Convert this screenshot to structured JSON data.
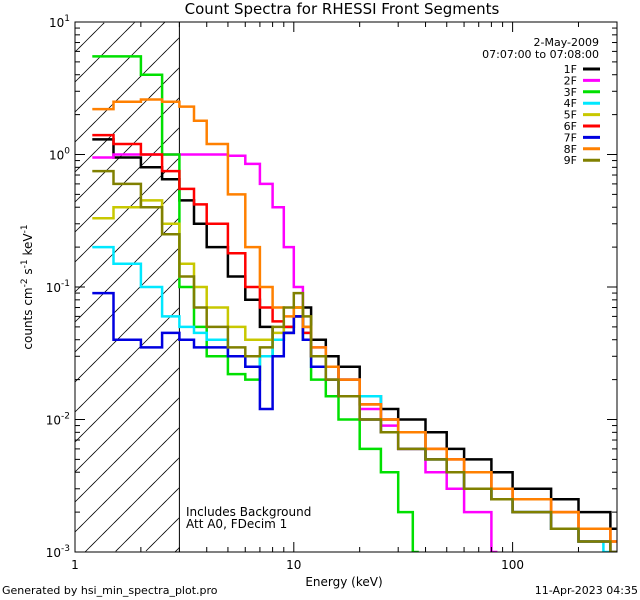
{
  "chart_data": {
    "type": "line",
    "title": "Count Spectra for RHESSI Front Segments",
    "xlabel": "Energy (keV)",
    "ylabel": "counts cm",
    "ylabel_exp1": "-2",
    "ylabel_mid": " s",
    "ylabel_exp2": "-1",
    "ylabel_end": " keV",
    "ylabel_exp3": "-1",
    "xscale": "log",
    "yscale": "log",
    "xlim": [
      1,
      300
    ],
    "ylim": [
      0.001,
      10
    ],
    "x_ticks": [
      {
        "value": 1,
        "label": "1"
      },
      {
        "value": 10,
        "label": "10"
      },
      {
        "value": 100,
        "label": "100"
      }
    ],
    "y_ticks": [
      {
        "value": 0.001,
        "base": "10",
        "exp": "-3"
      },
      {
        "value": 0.01,
        "base": "10",
        "exp": "-2"
      },
      {
        "value": 0.1,
        "base": "10",
        "exp": "-1"
      },
      {
        "value": 1,
        "base": "10",
        "exp": "0"
      },
      {
        "value": 10,
        "base": "10",
        "exp": "1"
      }
    ],
    "hatched_region": {
      "from": 1,
      "to": 3
    },
    "legend_position": "top-right",
    "date": "2-May-2009",
    "time_range": "07:07:00 to 07:08:00",
    "annotations": [
      "Includes Background",
      "Att A0, FDecim 1"
    ],
    "series": [
      {
        "name": "1F",
        "color": "#000000",
        "energies": [
          1.2,
          1.5,
          2.0,
          2.5,
          3.0,
          3.5,
          4.0,
          5.0,
          6.0,
          7.0,
          8.0,
          9.0,
          10.0,
          11.0,
          12.0,
          14.0,
          16.0,
          20.0,
          25.0,
          30.0,
          40.0,
          50.0,
          60.0,
          80.0,
          100.0,
          150.0,
          200.0,
          280.0
        ],
        "values": [
          1.3,
          0.95,
          0.8,
          0.65,
          0.45,
          0.3,
          0.2,
          0.12,
          0.08,
          0.05,
          0.04,
          0.045,
          0.06,
          0.07,
          0.04,
          0.03,
          0.025,
          0.015,
          0.012,
          0.01,
          0.008,
          0.006,
          0.005,
          0.004,
          0.003,
          0.0025,
          0.002,
          0.0015
        ]
      },
      {
        "name": "2F",
        "color": "#ff00ff",
        "energies": [
          1.2,
          1.5,
          2.0,
          2.5,
          3.0,
          3.5,
          4.0,
          5.0,
          6.0,
          7.0,
          8.0,
          9.0,
          10.0,
          11.0,
          12.0,
          14.0,
          16.0,
          20.0,
          25.0,
          30.0,
          40.0,
          50.0,
          60.0,
          80.0
        ],
        "values": [
          0.95,
          1.0,
          1.0,
          1.0,
          1.0,
          1.0,
          1.0,
          0.98,
          0.85,
          0.6,
          0.4,
          0.2,
          0.1,
          0.05,
          0.035,
          0.025,
          0.02,
          0.012,
          0.009,
          0.006,
          0.004,
          0.003,
          0.002,
          0.001
        ]
      },
      {
        "name": "3F",
        "color": "#00e000",
        "energies": [
          1.2,
          1.5,
          2.0,
          2.5,
          3.0,
          3.5,
          4.0,
          5.0,
          6.0,
          7.0,
          8.0,
          9.0,
          10.0,
          11.0,
          12.0,
          14.0,
          16.0,
          20.0,
          25.0,
          30.0,
          35.0
        ],
        "values": [
          5.5,
          5.5,
          4.0,
          1.0,
          0.1,
          0.05,
          0.03,
          0.022,
          0.02,
          0.03,
          0.04,
          0.05,
          0.07,
          0.04,
          0.02,
          0.015,
          0.01,
          0.006,
          0.004,
          0.002,
          0.001
        ]
      },
      {
        "name": "4F",
        "color": "#00e8ff",
        "energies": [
          1.2,
          1.5,
          2.0,
          2.5,
          3.0,
          3.5,
          4.0,
          5.0,
          6.0,
          7.0,
          8.0,
          9.0,
          10.0,
          11.0,
          12.0,
          14.0,
          16.0,
          20.0,
          25.0,
          30.0,
          40.0,
          50.0,
          60.0,
          80.0,
          100.0,
          150.0,
          200.0,
          260.0
        ],
        "values": [
          0.2,
          0.15,
          0.1,
          0.06,
          0.05,
          0.045,
          0.04,
          0.03,
          0.025,
          0.03,
          0.04,
          0.05,
          0.06,
          0.045,
          0.03,
          0.025,
          0.02,
          0.015,
          0.01,
          0.008,
          0.005,
          0.004,
          0.003,
          0.0025,
          0.002,
          0.0015,
          0.0012,
          0.001
        ]
      },
      {
        "name": "5F",
        "color": "#c8c800",
        "energies": [
          1.2,
          1.5,
          2.0,
          2.5,
          3.0,
          3.5,
          4.0,
          5.0,
          6.0,
          7.0,
          8.0,
          9.0,
          10.0,
          11.0,
          12.0,
          14.0,
          16.0,
          20.0,
          25.0,
          30.0,
          40.0,
          50.0,
          60.0,
          80.0,
          100.0,
          150.0,
          200.0,
          280.0
        ],
        "values": [
          0.33,
          0.4,
          0.45,
          0.3,
          0.15,
          0.1,
          0.07,
          0.05,
          0.04,
          0.04,
          0.045,
          0.05,
          0.07,
          0.05,
          0.03,
          0.02,
          0.015,
          0.01,
          0.008,
          0.006,
          0.005,
          0.004,
          0.003,
          0.0025,
          0.002,
          0.0015,
          0.0012,
          0.001
        ]
      },
      {
        "name": "6F",
        "color": "#ff0000",
        "energies": [
          1.2,
          1.5,
          2.0,
          2.5,
          3.0,
          3.5,
          4.0,
          5.0,
          6.0,
          7.0,
          8.0,
          9.0,
          10.0,
          11.0,
          12.0,
          14.0,
          16.0,
          20.0,
          25.0,
          30.0,
          40.0,
          50.0,
          60.0,
          80.0,
          100.0,
          150.0,
          200.0,
          280.0
        ],
        "values": [
          1.4,
          1.2,
          1.0,
          0.75,
          0.55,
          0.42,
          0.3,
          0.18,
          0.1,
          0.07,
          0.055,
          0.05,
          0.06,
          0.045,
          0.03,
          0.025,
          0.02,
          0.013,
          0.01,
          0.008,
          0.006,
          0.005,
          0.004,
          0.003,
          0.0025,
          0.002,
          0.0015,
          0.0012
        ]
      },
      {
        "name": "7F",
        "color": "#0000e0",
        "energies": [
          1.2,
          1.5,
          2.0,
          2.5,
          3.0,
          3.5,
          4.0,
          5.0,
          6.0,
          7.0,
          8.0,
          9.0,
          10.0,
          11.0,
          12.0,
          14.0,
          16.0,
          20.0,
          25.0,
          30.0,
          40.0,
          50.0,
          60.0,
          80.0,
          100.0,
          150.0,
          200.0,
          280.0
        ],
        "values": [
          0.09,
          0.04,
          0.035,
          0.045,
          0.04,
          0.035,
          0.035,
          0.03,
          0.025,
          0.012,
          0.03,
          0.045,
          0.06,
          0.04,
          0.025,
          0.02,
          0.015,
          0.01,
          0.008,
          0.006,
          0.005,
          0.004,
          0.003,
          0.0025,
          0.002,
          0.0015,
          0.0012,
          0.001
        ]
      },
      {
        "name": "8F",
        "color": "#ff8000",
        "energies": [
          1.2,
          1.5,
          2.0,
          2.5,
          3.0,
          3.5,
          4.0,
          5.0,
          6.0,
          7.0,
          8.0,
          9.0,
          10.0,
          11.0,
          12.0,
          14.0,
          16.0,
          20.0,
          25.0,
          30.0,
          40.0,
          50.0,
          60.0,
          80.0,
          100.0,
          150.0,
          200.0,
          280.0
        ],
        "values": [
          2.2,
          2.5,
          2.6,
          2.5,
          2.3,
          1.8,
          1.2,
          0.5,
          0.2,
          0.1,
          0.07,
          0.06,
          0.07,
          0.05,
          0.035,
          0.025,
          0.02,
          0.013,
          0.01,
          0.008,
          0.006,
          0.005,
          0.004,
          0.003,
          0.0025,
          0.002,
          0.0015,
          0.0012
        ]
      },
      {
        "name": "9F",
        "color": "#808000",
        "energies": [
          1.2,
          1.5,
          2.0,
          2.5,
          3.0,
          3.5,
          4.0,
          5.0,
          6.0,
          7.0,
          8.0,
          9.0,
          10.0,
          11.0,
          12.0,
          14.0,
          16.0,
          20.0,
          25.0,
          30.0,
          40.0,
          50.0,
          60.0,
          80.0,
          100.0,
          150.0,
          200.0,
          280.0
        ],
        "values": [
          0.75,
          0.6,
          0.4,
          0.25,
          0.12,
          0.07,
          0.05,
          0.035,
          0.03,
          0.035,
          0.05,
          0.07,
          0.09,
          0.06,
          0.03,
          0.02,
          0.015,
          0.01,
          0.008,
          0.006,
          0.005,
          0.004,
          0.003,
          0.0025,
          0.002,
          0.0015,
          0.0012,
          0.001
        ]
      }
    ]
  },
  "footer": {
    "generated_by": "Generated by hsi_min_spectra_plot.pro",
    "generated_on": "11-Apr-2023 04:35"
  }
}
